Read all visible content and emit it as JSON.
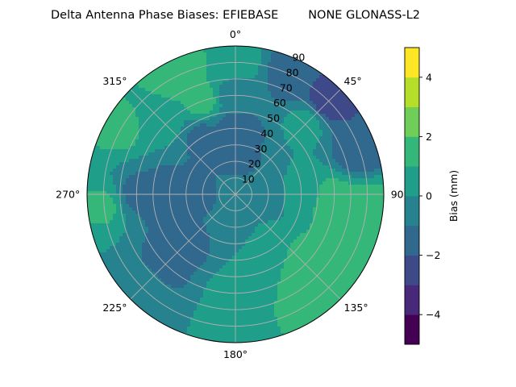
{
  "chart_data": {
    "type": "heatmap",
    "projection": "polar",
    "title": "Delta Antenna Phase Biases: EFIEBASE        NONE GLONASS-L2",
    "azimuth_ticks": [
      {
        "value": 0,
        "label": "0°"
      },
      {
        "value": 45,
        "label": "45°"
      },
      {
        "value": 90,
        "label": "90°"
      },
      {
        "value": 135,
        "label": "135°"
      },
      {
        "value": 180,
        "label": "180°"
      },
      {
        "value": 225,
        "label": "225°"
      },
      {
        "value": 270,
        "label": "270°"
      },
      {
        "value": 315,
        "label": "315°"
      }
    ],
    "radial_ticks": [
      {
        "value": 10,
        "label": "10"
      },
      {
        "value": 20,
        "label": "20"
      },
      {
        "value": 30,
        "label": "30"
      },
      {
        "value": 40,
        "label": "40"
      },
      {
        "value": 50,
        "label": "50"
      },
      {
        "value": 60,
        "label": "60"
      },
      {
        "value": 70,
        "label": "70"
      },
      {
        "value": 80,
        "label": "80"
      },
      {
        "value": 90,
        "label": "90"
      }
    ],
    "rlim": [
      0,
      90
    ],
    "theta_zero": "top",
    "theta_direction": "clockwise",
    "grid": true,
    "colorbar": {
      "label": "Bias (mm)",
      "vmin": -5,
      "vmax": 5,
      "levels": [
        -5,
        -4,
        -3,
        -2,
        -1,
        0,
        1,
        2,
        3,
        4,
        5
      ],
      "colors": [
        "#440154",
        "#482878",
        "#3e4989",
        "#31688e",
        "#26828e",
        "#1f9e89",
        "#35b779",
        "#6ece58",
        "#b5de2b",
        "#fde725"
      ],
      "ticks": [
        {
          "value": -4,
          "label": "−4"
        },
        {
          "value": -2,
          "label": "−2"
        },
        {
          "value": 0,
          "label": "0"
        },
        {
          "value": 2,
          "label": "2"
        },
        {
          "value": 4,
          "label": "4"
        }
      ]
    },
    "field_samples": {
      "columns": [
        "azimuth_deg",
        "radius",
        "bias_mm"
      ],
      "rows": [
        [
          0,
          0,
          -0.3
        ],
        [
          0,
          20,
          -1.3
        ],
        [
          90,
          20,
          -0.6
        ],
        [
          180,
          20,
          -0.2
        ],
        [
          270,
          20,
          -1.2
        ],
        [
          0,
          40,
          -1.4
        ],
        [
          90,
          40,
          0.6
        ],
        [
          150,
          40,
          0.8
        ],
        [
          225,
          40,
          -1.3
        ],
        [
          270,
          40,
          -1.5
        ],
        [
          330,
          40,
          -1.2
        ],
        [
          0,
          60,
          -0.5
        ],
        [
          45,
          60,
          0.3
        ],
        [
          95,
          60,
          1.6
        ],
        [
          135,
          60,
          1.4
        ],
        [
          180,
          60,
          0.4
        ],
        [
          225,
          60,
          -1.3
        ],
        [
          270,
          60,
          -1.2
        ],
        [
          315,
          60,
          0.2
        ],
        [
          340,
          60,
          1.3
        ],
        [
          0,
          80,
          0.6
        ],
        [
          25,
          80,
          -1.6
        ],
        [
          45,
          80,
          -2.6
        ],
        [
          70,
          80,
          -1.8
        ],
        [
          95,
          80,
          1.3
        ],
        [
          125,
          80,
          1.5
        ],
        [
          150,
          80,
          1.2
        ],
        [
          180,
          80,
          0.4
        ],
        [
          225,
          80,
          -0.4
        ],
        [
          265,
          80,
          1.1
        ],
        [
          300,
          80,
          1.2
        ],
        [
          335,
          80,
          1.9
        ]
      ]
    }
  }
}
